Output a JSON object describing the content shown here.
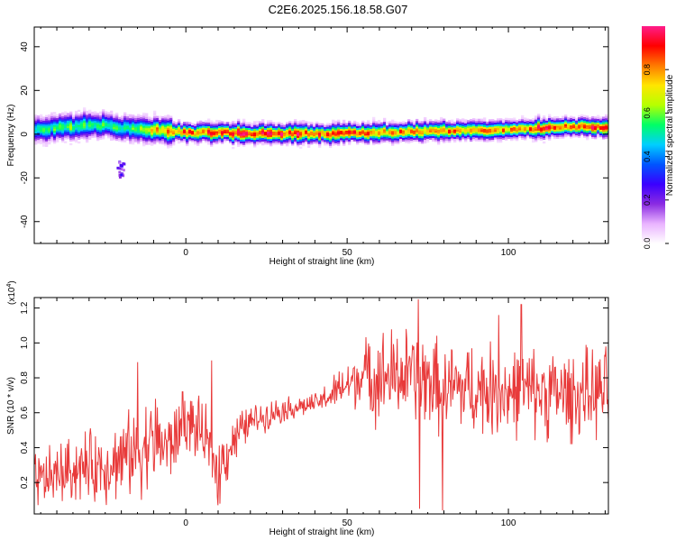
{
  "title": "C2E6.2025.156.18.58.G07",
  "chart_data": [
    {
      "type": "heatmap",
      "xlabel": "Height of straight line (km)",
      "ylabel": "Frequency (Hz)",
      "xlim": [
        -47,
        131
      ],
      "ylim": [
        -50,
        49
      ],
      "xticks": [
        0,
        50,
        100
      ],
      "yticks": [
        -40,
        -20,
        0,
        20,
        40
      ],
      "colorbar": {
        "label": "Normalized spectral amplitude",
        "range": [
          0,
          1
        ],
        "ticks": [
          0.0,
          0.2,
          0.4,
          0.6,
          0.8
        ],
        "tick_labels": [
          "0.0",
          "0.2",
          "0.4",
          "0.6",
          "0.8"
        ],
        "colormap": [
          "#ffffff",
          "#e9b3ff",
          "#8a2be2",
          "#3a00ff",
          "#0055ff",
          "#00cfff",
          "#00ff66",
          "#b6ff00",
          "#ffe600",
          "#ff7a00",
          "#ff0000",
          "#ff1c8a"
        ]
      },
      "ridge": {
        "x": [
          -47,
          -40,
          -35,
          -30,
          -25,
          -20,
          -15,
          -10,
          -5,
          0,
          10,
          20,
          30,
          40,
          50,
          60,
          70,
          80,
          90,
          100,
          110,
          120,
          131
        ],
        "center_freq": [
          1.5,
          2.5,
          3.0,
          4.0,
          3.5,
          2.5,
          2.0,
          1.5,
          1.0,
          0.5,
          0.5,
          0.0,
          0.0,
          0.0,
          0.0,
          0.5,
          1.0,
          1.0,
          1.5,
          2.0,
          2.5,
          3.0,
          3.0
        ],
        "peak_amplitude": [
          0.55,
          0.6,
          0.65,
          0.6,
          0.55,
          0.6,
          0.7,
          0.85,
          0.9,
          0.95,
          0.95,
          0.98,
          0.98,
          0.95,
          0.9,
          0.85,
          0.9,
          0.9,
          0.85,
          0.85,
          0.95,
          0.98,
          0.9
        ]
      },
      "blobs": [
        {
          "x": -20.5,
          "freq": -16,
          "amplitude": 0.25
        }
      ]
    },
    {
      "type": "line",
      "xlabel": "Height of straight line (km)",
      "ylabel": "SNR (10 * v/v)",
      "scale_label": "(x10",
      "scale_exp": "4",
      "scale_close": ")",
      "xlim": [
        -47,
        131
      ],
      "ylim": [
        0.02,
        1.26
      ],
      "xticks": [
        0,
        50,
        100
      ],
      "yticks": [
        0.2,
        0.4,
        0.6,
        0.8,
        1.0,
        1.2
      ],
      "ytick_labels": [
        "0.2",
        "0.4",
        "0.6",
        "0.8",
        "1.0",
        "1.2"
      ],
      "color": "#e83a3a",
      "trend": {
        "x": [
          -47,
          -35,
          -25,
          -15,
          -10,
          -5,
          0,
          5,
          10,
          15,
          20,
          30,
          40,
          45,
          50,
          55,
          60,
          70,
          80,
          90,
          100,
          110,
          120,
          131
        ],
        "y": [
          0.2,
          0.28,
          0.3,
          0.38,
          0.45,
          0.4,
          0.55,
          0.48,
          0.28,
          0.45,
          0.55,
          0.62,
          0.65,
          0.7,
          0.76,
          0.82,
          0.8,
          0.82,
          0.74,
          0.74,
          0.72,
          0.72,
          0.7,
          0.72
        ]
      },
      "amplitude": {
        "x": [
          -47,
          -20,
          -10,
          0,
          10,
          20,
          40,
          55,
          60,
          131
        ],
        "y": [
          0.14,
          0.2,
          0.24,
          0.14,
          0.18,
          0.08,
          0.05,
          0.16,
          0.24,
          0.22
        ]
      },
      "peaks": [
        {
          "x": -15,
          "y": 0.89
        },
        {
          "x": -1,
          "y": 0.72
        },
        {
          "x": 8,
          "y": 0.9
        },
        {
          "x": 10,
          "y": 0.07
        },
        {
          "x": 57,
          "y": 0.98
        },
        {
          "x": 72,
          "y": 1.25
        },
        {
          "x": 72.5,
          "y": 0.05
        },
        {
          "x": 79.5,
          "y": 0.04
        },
        {
          "x": 104,
          "y": 1.22
        },
        {
          "x": 97,
          "y": 1.16
        }
      ]
    }
  ]
}
